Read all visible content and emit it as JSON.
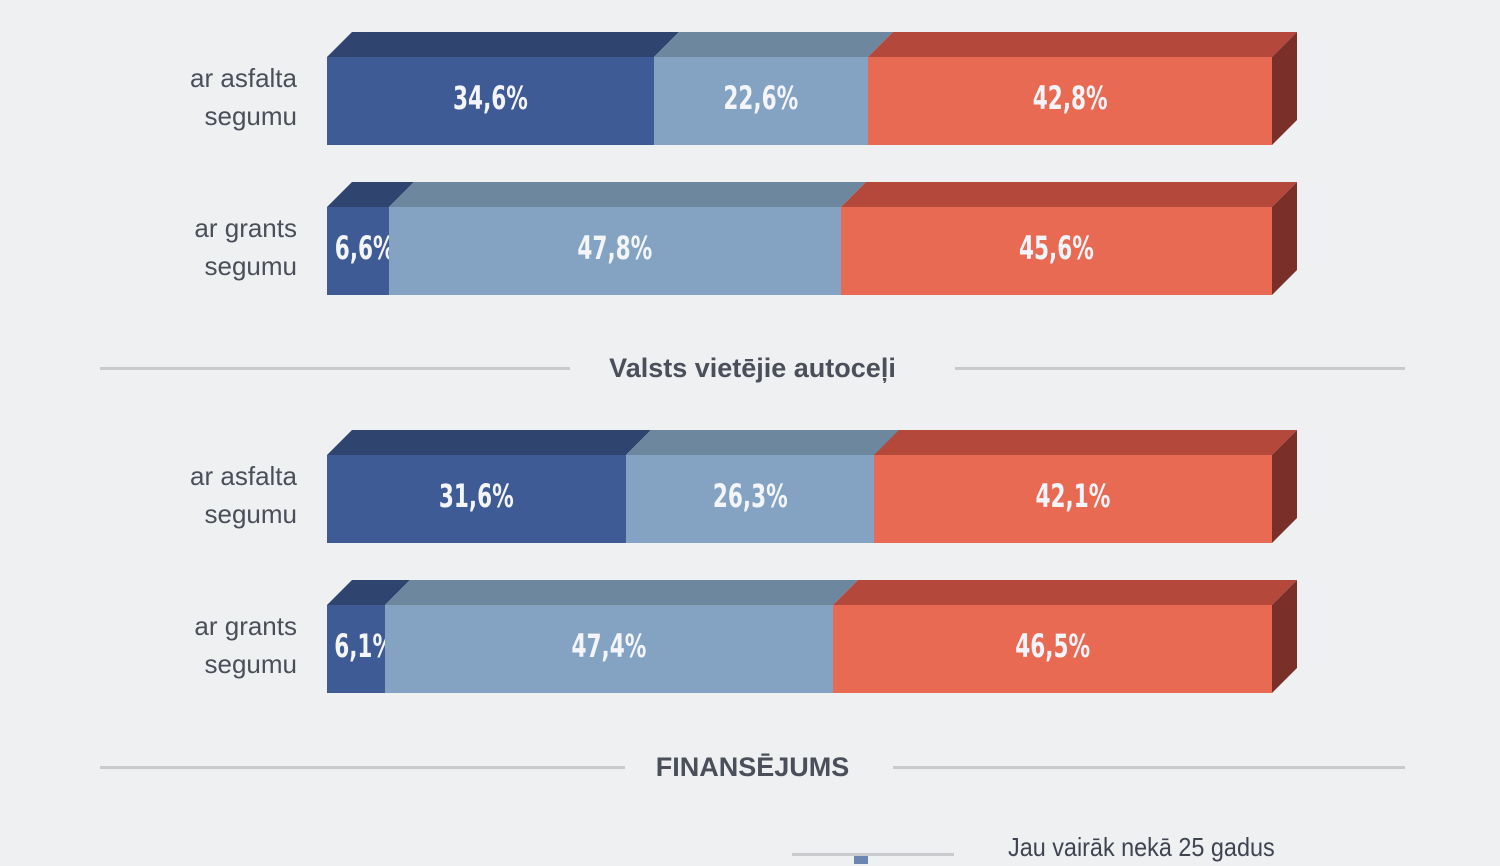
{
  "chart_data": {
    "type": "bar",
    "orientation": "horizontal-stacked-100",
    "colors": [
      "#3f5b95",
      "#84a3c3",
      "#e96a52"
    ],
    "top_colors": [
      "#2f4570",
      "#6d879f",
      "#b4493b"
    ],
    "side_color": "#7a3029",
    "groups": [
      {
        "title": "",
        "rows": [
          {
            "label": "ar asfalta segumu",
            "values": [
              34.6,
              22.6,
              42.8
            ],
            "value_labels": [
              "34,6%",
              "22,6%",
              "42,8%"
            ]
          },
          {
            "label": "ar grants segumu",
            "values": [
              6.6,
              47.8,
              45.6
            ],
            "value_labels": [
              "6,6%",
              "47,8%",
              "45,6%"
            ]
          }
        ]
      },
      {
        "title": "Valsts vietējie autoceļi",
        "rows": [
          {
            "label": "ar asfalta segumu",
            "values": [
              31.6,
              26.3,
              42.1
            ],
            "value_labels": [
              "31,6%",
              "26,3%",
              "42,1%"
            ]
          },
          {
            "label": "ar grants segumu",
            "values": [
              6.1,
              47.4,
              46.5
            ],
            "value_labels": [
              "6,1%",
              "47,4%",
              "46,5%"
            ]
          }
        ]
      }
    ]
  },
  "financing": {
    "title": "FINANSĒJUMS",
    "text": "Jau vairāk nekā 25 gadus"
  }
}
